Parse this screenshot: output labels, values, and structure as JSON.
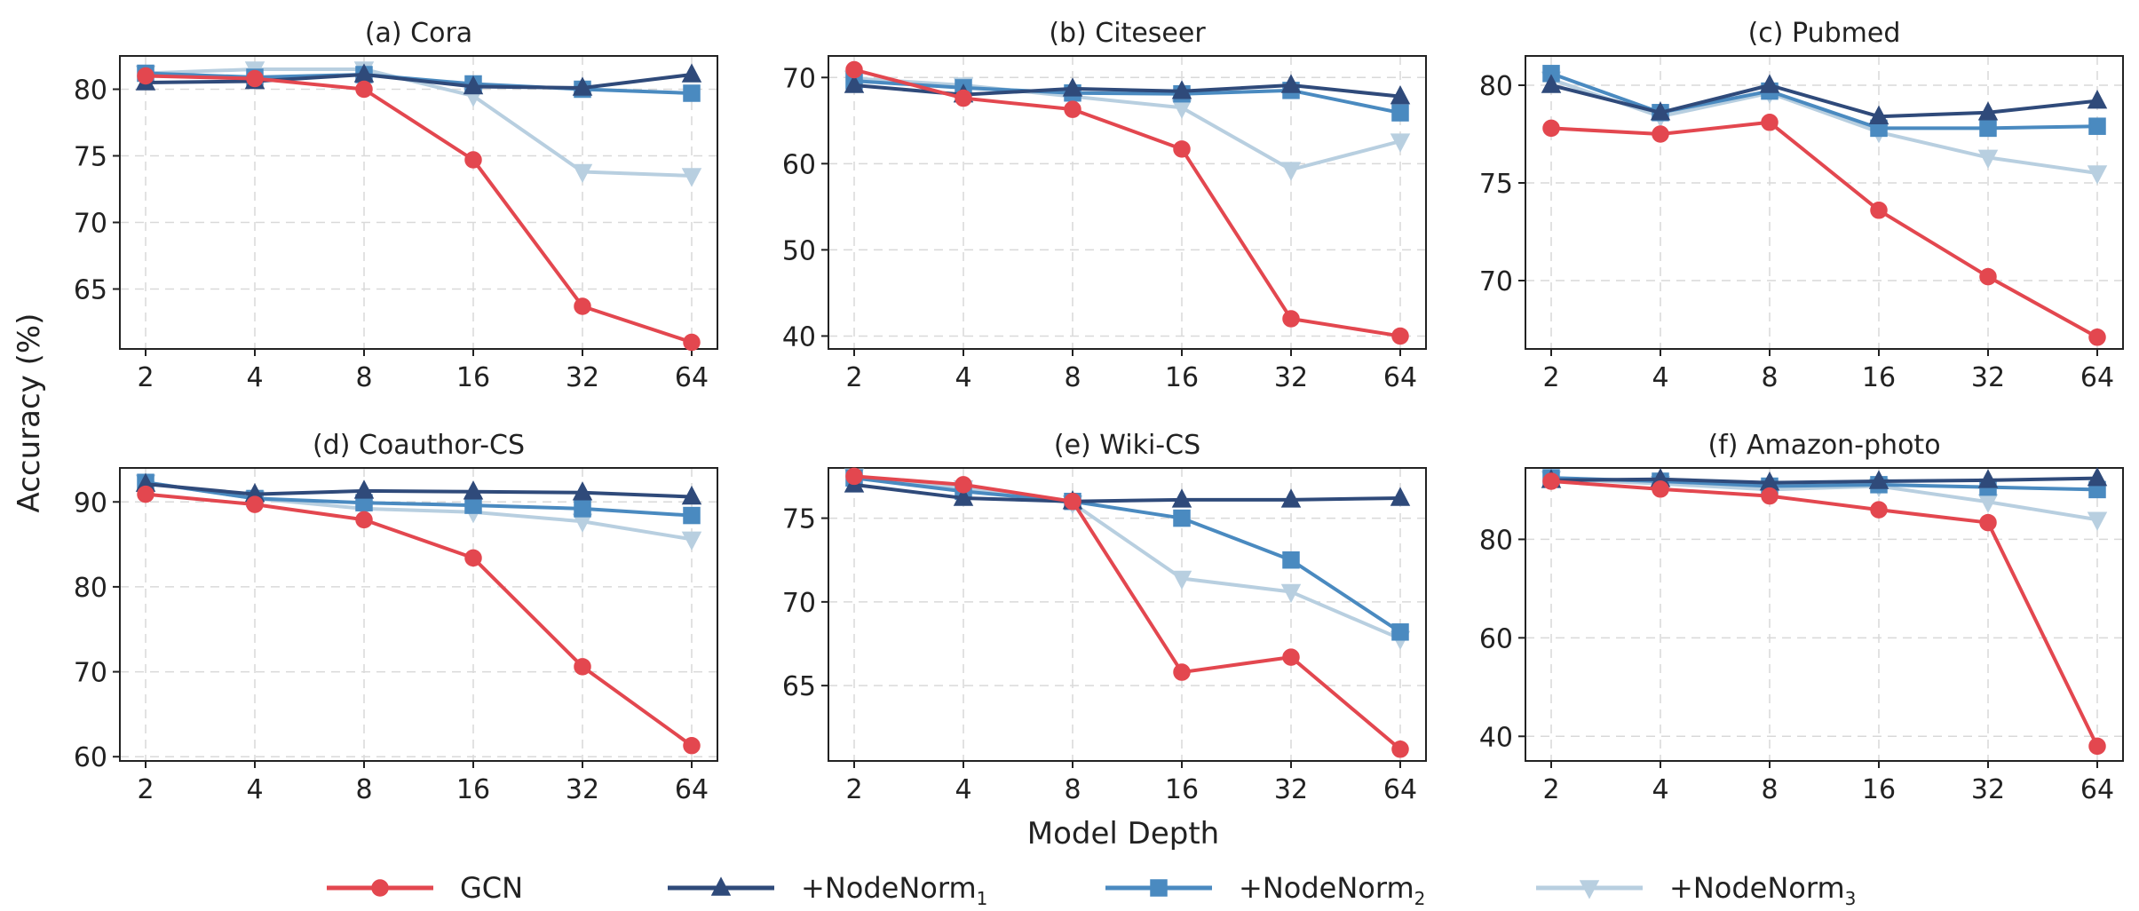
{
  "colors": {
    "GCN": "#e3474f",
    "NodeNorm1": "#2f4a7a",
    "NodeNorm2": "#4a8ac0",
    "NodeNorm3": "#b8cfe0"
  },
  "shared": {
    "xlabel": "Model Depth",
    "ylabel": "Accuracy (%)",
    "legend": [
      {
        "key": "GCN",
        "label": "GCN",
        "sub": "",
        "marker": "circle"
      },
      {
        "key": "NodeNorm1",
        "label": "+NodeNorm",
        "sub": "1",
        "marker": "triangle-up"
      },
      {
        "key": "NodeNorm2",
        "label": "+NodeNorm",
        "sub": "2",
        "marker": "square"
      },
      {
        "key": "NodeNorm3",
        "label": "+NodeNorm",
        "sub": "3",
        "marker": "triangle-down"
      }
    ]
  },
  "chart_data": [
    {
      "type": "line",
      "title": "(a) Cora",
      "categories": [
        "2",
        "4",
        "8",
        "16",
        "32",
        "64"
      ],
      "ylim": [
        60.5,
        82.5
      ],
      "yticks": [
        65,
        70,
        75,
        80
      ],
      "series": [
        {
          "key": "GCN",
          "values": [
            81.0,
            80.8,
            80.0,
            74.7,
            63.7,
            61.0
          ]
        },
        {
          "key": "NodeNorm1",
          "values": [
            80.5,
            80.6,
            81.1,
            80.2,
            80.1,
            81.1
          ]
        },
        {
          "key": "NodeNorm2",
          "values": [
            81.2,
            80.9,
            81.1,
            80.4,
            80.0,
            79.7
          ]
        },
        {
          "key": "NodeNorm3",
          "values": [
            81.2,
            81.5,
            81.5,
            79.5,
            73.8,
            73.5
          ]
        }
      ]
    },
    {
      "type": "line",
      "title": "(b) Citeseer",
      "categories": [
        "2",
        "4",
        "8",
        "16",
        "32",
        "64"
      ],
      "ylim": [
        38.5,
        72.5
      ],
      "yticks": [
        40,
        50,
        60,
        70
      ],
      "series": [
        {
          "key": "GCN",
          "values": [
            70.9,
            67.6,
            66.3,
            61.7,
            42.0,
            40.0
          ]
        },
        {
          "key": "NodeNorm1",
          "values": [
            69.1,
            68.0,
            68.7,
            68.4,
            69.1,
            67.8
          ]
        },
        {
          "key": "NodeNorm2",
          "values": [
            69.6,
            68.8,
            68.2,
            68.1,
            68.5,
            65.9
          ]
        },
        {
          "key": "NodeNorm3",
          "values": [
            69.9,
            69.1,
            67.8,
            66.5,
            59.3,
            62.6
          ]
        }
      ]
    },
    {
      "type": "line",
      "title": "(c) Pubmed",
      "categories": [
        "2",
        "4",
        "8",
        "16",
        "32",
        "64"
      ],
      "ylim": [
        66.5,
        81.5
      ],
      "yticks": [
        70,
        75,
        80
      ],
      "series": [
        {
          "key": "GCN",
          "values": [
            77.8,
            77.5,
            78.1,
            73.6,
            70.2,
            67.1
          ]
        },
        {
          "key": "NodeNorm1",
          "values": [
            80.0,
            78.6,
            80.0,
            78.4,
            78.6,
            79.2
          ]
        },
        {
          "key": "NodeNorm2",
          "values": [
            80.6,
            78.6,
            79.7,
            77.8,
            77.8,
            77.9
          ]
        },
        {
          "key": "NodeNorm3",
          "values": [
            80.3,
            78.4,
            79.6,
            77.6,
            76.3,
            75.5
          ]
        }
      ]
    },
    {
      "type": "line",
      "title": "(d) Coauthor-CS",
      "categories": [
        "2",
        "4",
        "8",
        "16",
        "32",
        "64"
      ],
      "ylim": [
        59.5,
        94.0
      ],
      "yticks": [
        60,
        70,
        80,
        90
      ],
      "series": [
        {
          "key": "GCN",
          "values": [
            90.9,
            89.7,
            87.9,
            83.4,
            70.6,
            61.3
          ]
        },
        {
          "key": "NodeNorm1",
          "values": [
            92.1,
            90.9,
            91.3,
            91.2,
            91.1,
            90.6
          ]
        },
        {
          "key": "NodeNorm2",
          "values": [
            92.3,
            90.4,
            89.9,
            89.6,
            89.2,
            88.4
          ]
        },
        {
          "key": "NodeNorm3",
          "values": [
            92.3,
            90.4,
            89.2,
            88.8,
            87.7,
            85.6
          ]
        }
      ]
    },
    {
      "type": "line",
      "title": "(e) Wiki-CS",
      "categories": [
        "2",
        "4",
        "8",
        "16",
        "32",
        "64"
      ],
      "ylim": [
        60.5,
        78.0
      ],
      "yticks": [
        65,
        70,
        75
      ],
      "series": [
        {
          "key": "GCN",
          "values": [
            77.5,
            77.0,
            76.0,
            65.8,
            66.7,
            61.2
          ]
        },
        {
          "key": "NodeNorm1",
          "values": [
            77.0,
            76.2,
            76.0,
            76.1,
            76.1,
            76.2
          ]
        },
        {
          "key": "NodeNorm2",
          "values": [
            77.4,
            76.6,
            76.0,
            75.0,
            72.5,
            68.2
          ]
        },
        {
          "key": "NodeNorm3",
          "values": [
            77.5,
            76.8,
            75.9,
            71.4,
            70.6,
            67.8
          ]
        }
      ]
    },
    {
      "type": "line",
      "title": "(f) Amazon-photo",
      "categories": [
        "2",
        "4",
        "8",
        "16",
        "32",
        "64"
      ],
      "ylim": [
        35.0,
        94.5
      ],
      "yticks": [
        40,
        60,
        80
      ],
      "series": [
        {
          "key": "GCN",
          "values": [
            91.8,
            90.2,
            88.8,
            86.0,
            83.4,
            38.0
          ]
        },
        {
          "key": "NodeNorm1",
          "values": [
            92.0,
            92.2,
            91.5,
            91.8,
            92.0,
            92.4
          ]
        },
        {
          "key": "NodeNorm2",
          "values": [
            92.5,
            91.8,
            90.8,
            91.1,
            90.6,
            90.1
          ]
        },
        {
          "key": "NodeNorm3",
          "values": [
            92.3,
            91.3,
            90.1,
            90.8,
            87.6,
            84.0
          ]
        }
      ]
    }
  ]
}
